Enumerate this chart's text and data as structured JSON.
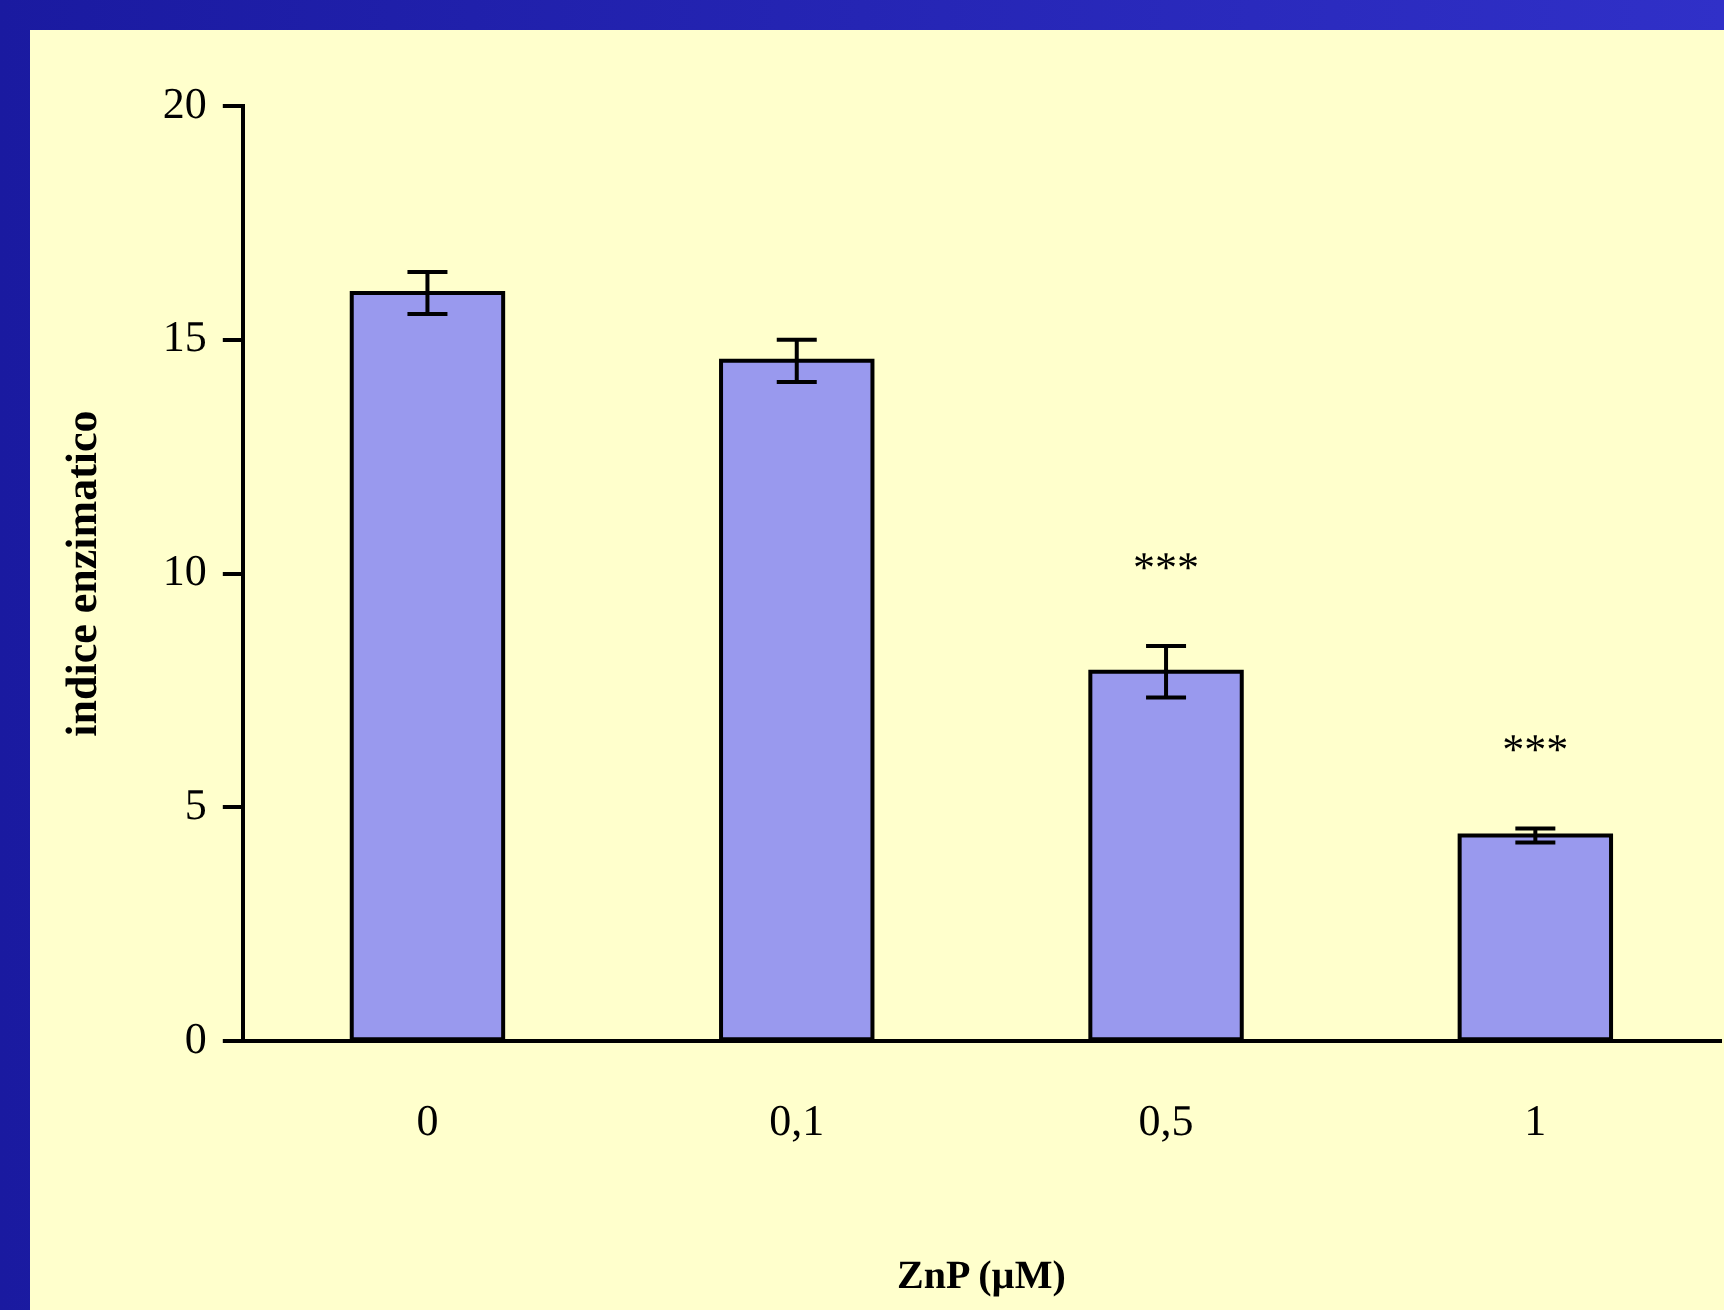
{
  "chart_data": {
    "type": "bar",
    "xlabel": "ZnP (µM)",
    "ylabel": "indice enzimatico",
    "categories": [
      "0",
      "0,1",
      "0,5",
      "1"
    ],
    "values": [
      16,
      14.55,
      7.9,
      4.4
    ],
    "errors": [
      0.45,
      0.45,
      0.55,
      0.15
    ],
    "color": "#9999ee",
    "ylim": [
      0,
      20
    ],
    "yticks": [
      0,
      5,
      10,
      15,
      20
    ],
    "grid": false,
    "legend": false,
    "annotations": [
      "***",
      "***"
    ]
  }
}
